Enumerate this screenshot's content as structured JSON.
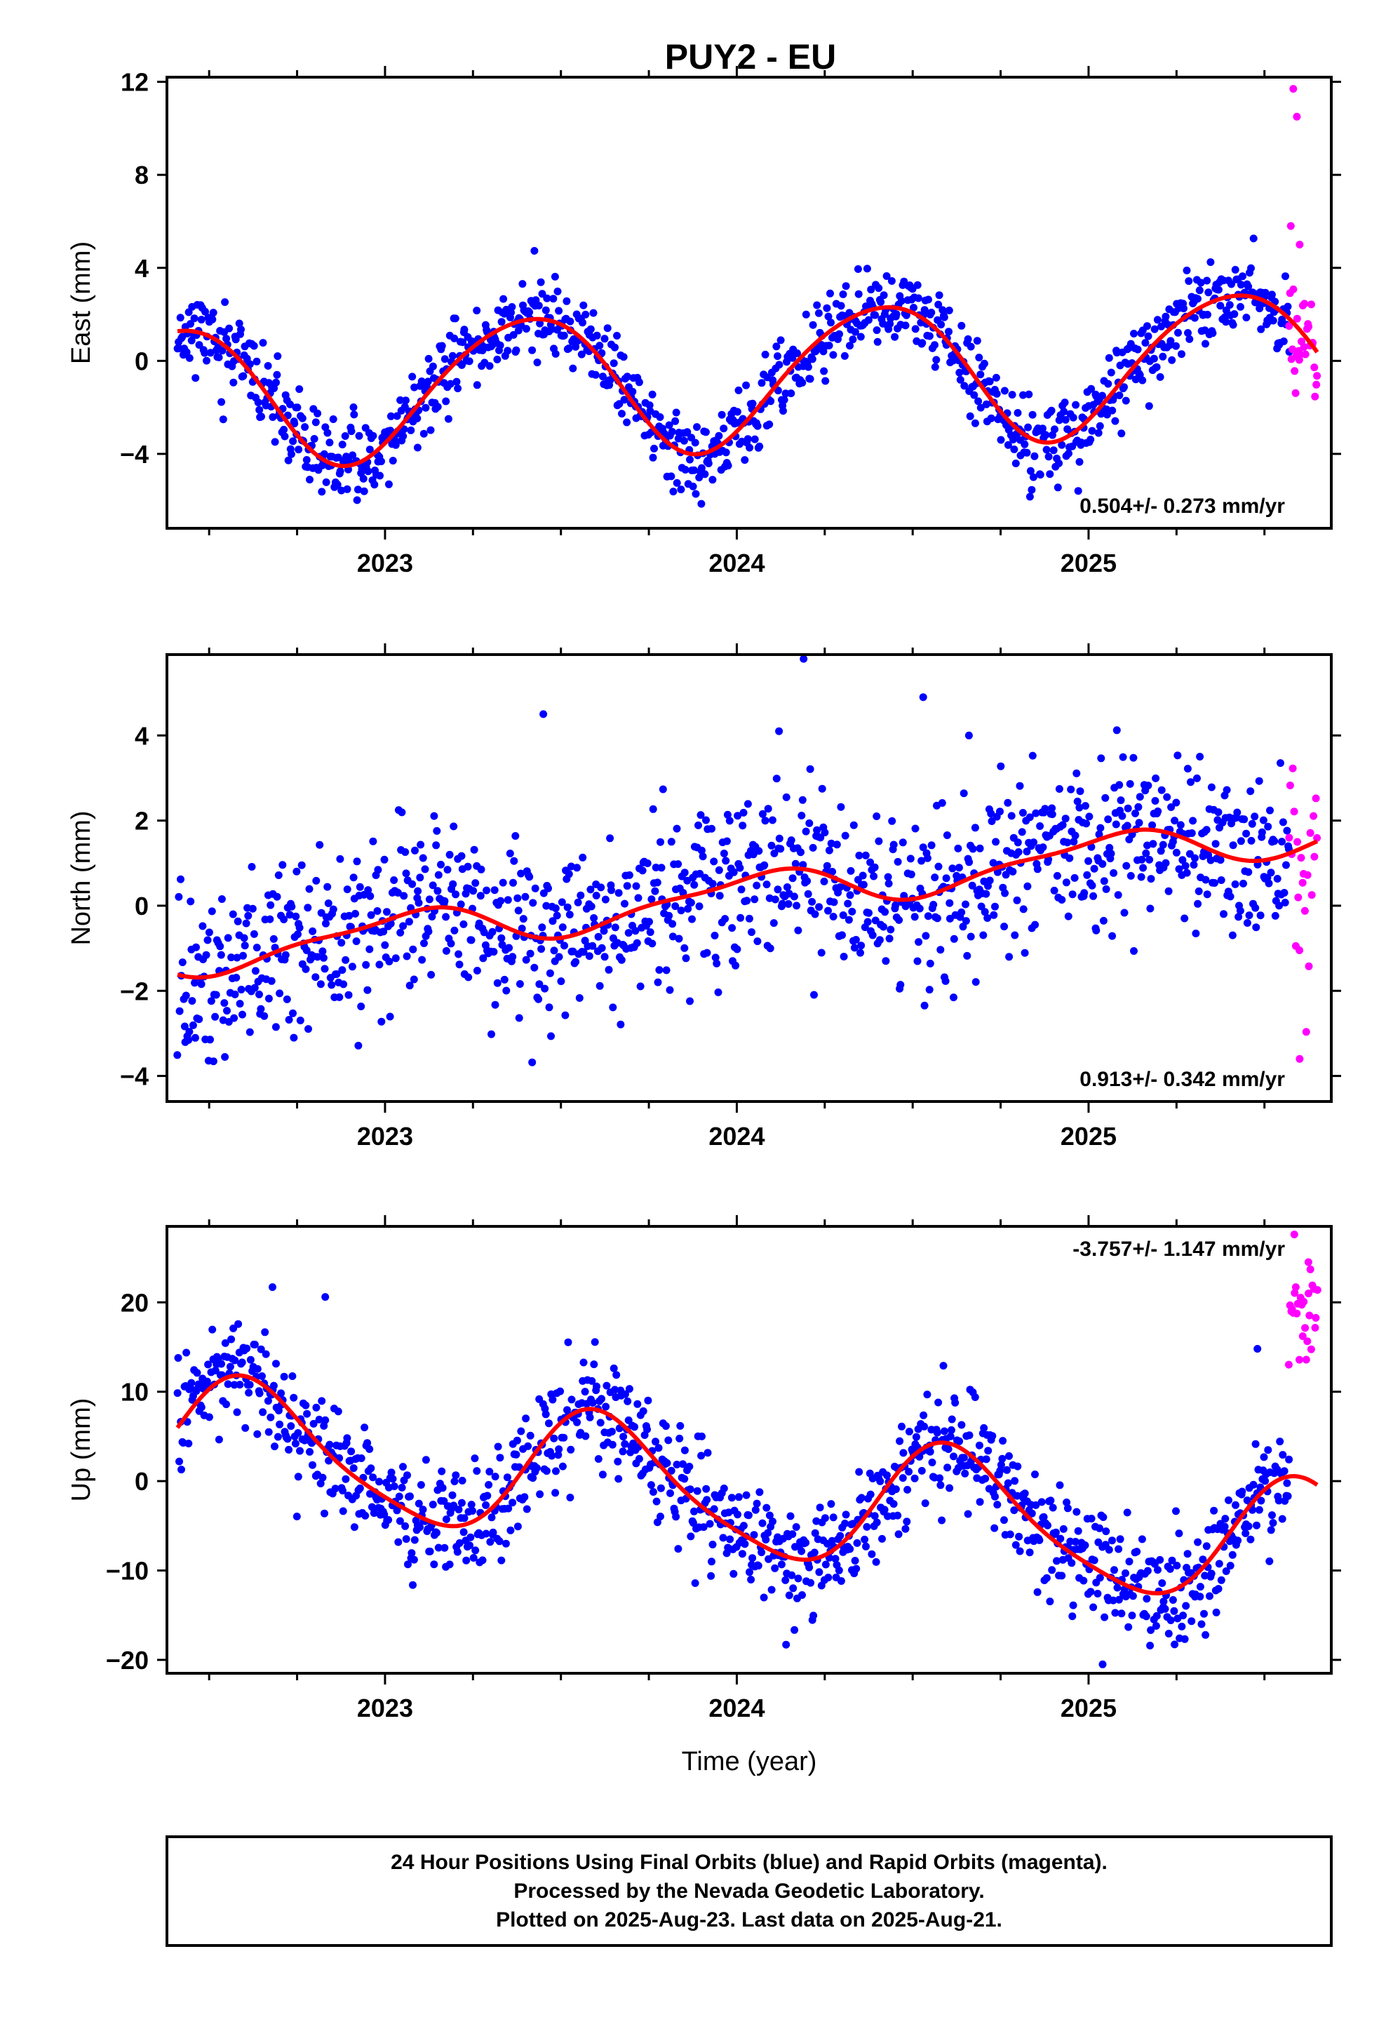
{
  "page": {
    "caption_lines": [
      "24 Hour Positions Using Final Orbits (blue) and Rapid Orbits (magenta).",
      "Processed by the Nevada Geodetic Laboratory.",
      "Plotted on 2025-Aug-23. Last data on 2025-Aug-21."
    ]
  },
  "colors": {
    "final_orbits": "#0000ff",
    "rapid_orbits": "#ff00ff",
    "model_fit": "#ff0000"
  },
  "chart_data": [
    {
      "type": "scatter",
      "title": "PUY2 - EU",
      "ylabel": "East (mm)",
      "xlabel": "",
      "xlim": [
        2022.38,
        2025.69
      ],
      "ylim": [
        -7.2,
        12.2
      ],
      "yticks": [
        12,
        8,
        4,
        0,
        -4
      ],
      "ytick_labels": [
        "12",
        "8",
        "4",
        "0",
        "−4"
      ],
      "xticks": [
        2023,
        2024,
        2025
      ],
      "xtick_labels": [
        "2023",
        "2024",
        "2025"
      ],
      "rate_label": "0.504+/- 0.273 mm/yr",
      "rate_position": "bottom-right",
      "grid": false,
      "model": {
        "offset": -0.7,
        "trend": 0.504,
        "annual_amp": 3.0,
        "annual_phase": 2023.4,
        "semi_amp": 0.3,
        "semi_phase": 2023.1,
        "ref_year": 2024.0
      },
      "series": [
        {
          "name": "Final Orbits",
          "style": "points",
          "x_start": 2022.41,
          "x_end": 2025.57,
          "count": 1120,
          "noise_sd": 0.85,
          "seed": 11
        },
        {
          "name": "Rapid Orbits",
          "style": "points",
          "x_start": 2025.57,
          "x_end": 2025.65,
          "count": 28,
          "noise_sd": 1.2,
          "seed": 21,
          "outliers": [
            {
              "x": 2025.582,
              "y": 11.7
            },
            {
              "x": 2025.592,
              "y": 10.5
            },
            {
              "x": 2025.575,
              "y": 5.8
            },
            {
              "x": 2025.6,
              "y": 5.0
            }
          ]
        },
        {
          "name": "Model",
          "style": "line",
          "x_start": 2022.41,
          "x_end": 2025.65
        }
      ]
    },
    {
      "type": "scatter",
      "title": "",
      "ylabel": "North (mm)",
      "xlabel": "",
      "xlim": [
        2022.38,
        2025.69
      ],
      "ylim": [
        -4.6,
        5.9
      ],
      "yticks": [
        4,
        2,
        0,
        -2,
        -4
      ],
      "ytick_labels": [
        "4",
        "2",
        "0",
        "−2",
        "−4"
      ],
      "xticks": [
        2023,
        2024,
        2025
      ],
      "xtick_labels": [
        "2023",
        "2024",
        "2025"
      ],
      "rate_label": "0.913+/- 0.342 mm/yr",
      "rate_position": "bottom-right",
      "grid": false,
      "model": {
        "offset": 0.25,
        "trend": 0.913,
        "annual_amp": 0.45,
        "annual_phase": 2023.05,
        "semi_amp": 0.15,
        "semi_phase": 2023.2,
        "ref_year": 2024.0
      },
      "series": [
        {
          "name": "Final Orbits",
          "style": "points",
          "x_start": 2022.41,
          "x_end": 2025.57,
          "count": 1120,
          "noise_sd": 0.95,
          "seed": 12,
          "outliers": [
            {
              "x": 2024.19,
              "y": 5.8
            },
            {
              "x": 2024.53,
              "y": 4.9
            },
            {
              "x": 2023.45,
              "y": 4.5
            },
            {
              "x": 2024.12,
              "y": 4.1
            },
            {
              "x": 2024.66,
              "y": 4.0
            }
          ]
        },
        {
          "name": "Rapid Orbits",
          "style": "points",
          "x_start": 2025.57,
          "x_end": 2025.65,
          "count": 22,
          "noise_sd": 1.4,
          "seed": 22,
          "outliers": [
            {
              "x": 2025.6,
              "y": -3.6
            }
          ]
        },
        {
          "name": "Model",
          "style": "line",
          "x_start": 2022.41,
          "x_end": 2025.65
        }
      ]
    },
    {
      "type": "scatter",
      "title": "",
      "ylabel": "Up (mm)",
      "xlabel": "Time (year)",
      "xlim": [
        2022.38,
        2025.69
      ],
      "ylim": [
        -21.5,
        28.5
      ],
      "yticks": [
        20,
        10,
        0,
        -10,
        -20
      ],
      "ytick_labels": [
        "20",
        "10",
        "0",
        "−10",
        "−20"
      ],
      "xticks": [
        2023,
        2024,
        2025
      ],
      "xtick_labels": [
        "2023",
        "2024",
        "2025"
      ],
      "rate_label": "-3.757+/- 1.147 mm/yr",
      "rate_position": "top-right",
      "grid": false,
      "model": {
        "offset": -1.5,
        "trend": -3.757,
        "annual_amp": 7.0,
        "annual_phase": 2023.62,
        "semi_amp": 1.3,
        "semi_phase": 2023.55,
        "ref_year": 2024.0
      },
      "series": [
        {
          "name": "Final Orbits",
          "style": "points",
          "x_start": 2022.41,
          "x_end": 2025.57,
          "count": 1120,
          "noise_sd": 3.0,
          "seed": 13,
          "outliers": [
            {
              "x": 2022.68,
              "y": 21.7
            },
            {
              "x": 2022.83,
              "y": 20.6
            },
            {
              "x": 2025.04,
              "y": -20.5
            },
            {
              "x": 2024.14,
              "y": -18.3
            },
            {
              "x": 2025.48,
              "y": 14.8
            }
          ]
        },
        {
          "name": "Rapid Orbits",
          "style": "points",
          "x_start": 2025.57,
          "x_end": 2025.65,
          "count": 26,
          "noise_sd": 3.5,
          "seed": 23,
          "base": 18.5,
          "outliers": [
            {
              "x": 2025.585,
              "y": 27.6
            },
            {
              "x": 2025.625,
              "y": 24.5
            }
          ]
        },
        {
          "name": "Model",
          "style": "line",
          "x_start": 2022.41,
          "x_end": 2025.65
        }
      ]
    }
  ]
}
